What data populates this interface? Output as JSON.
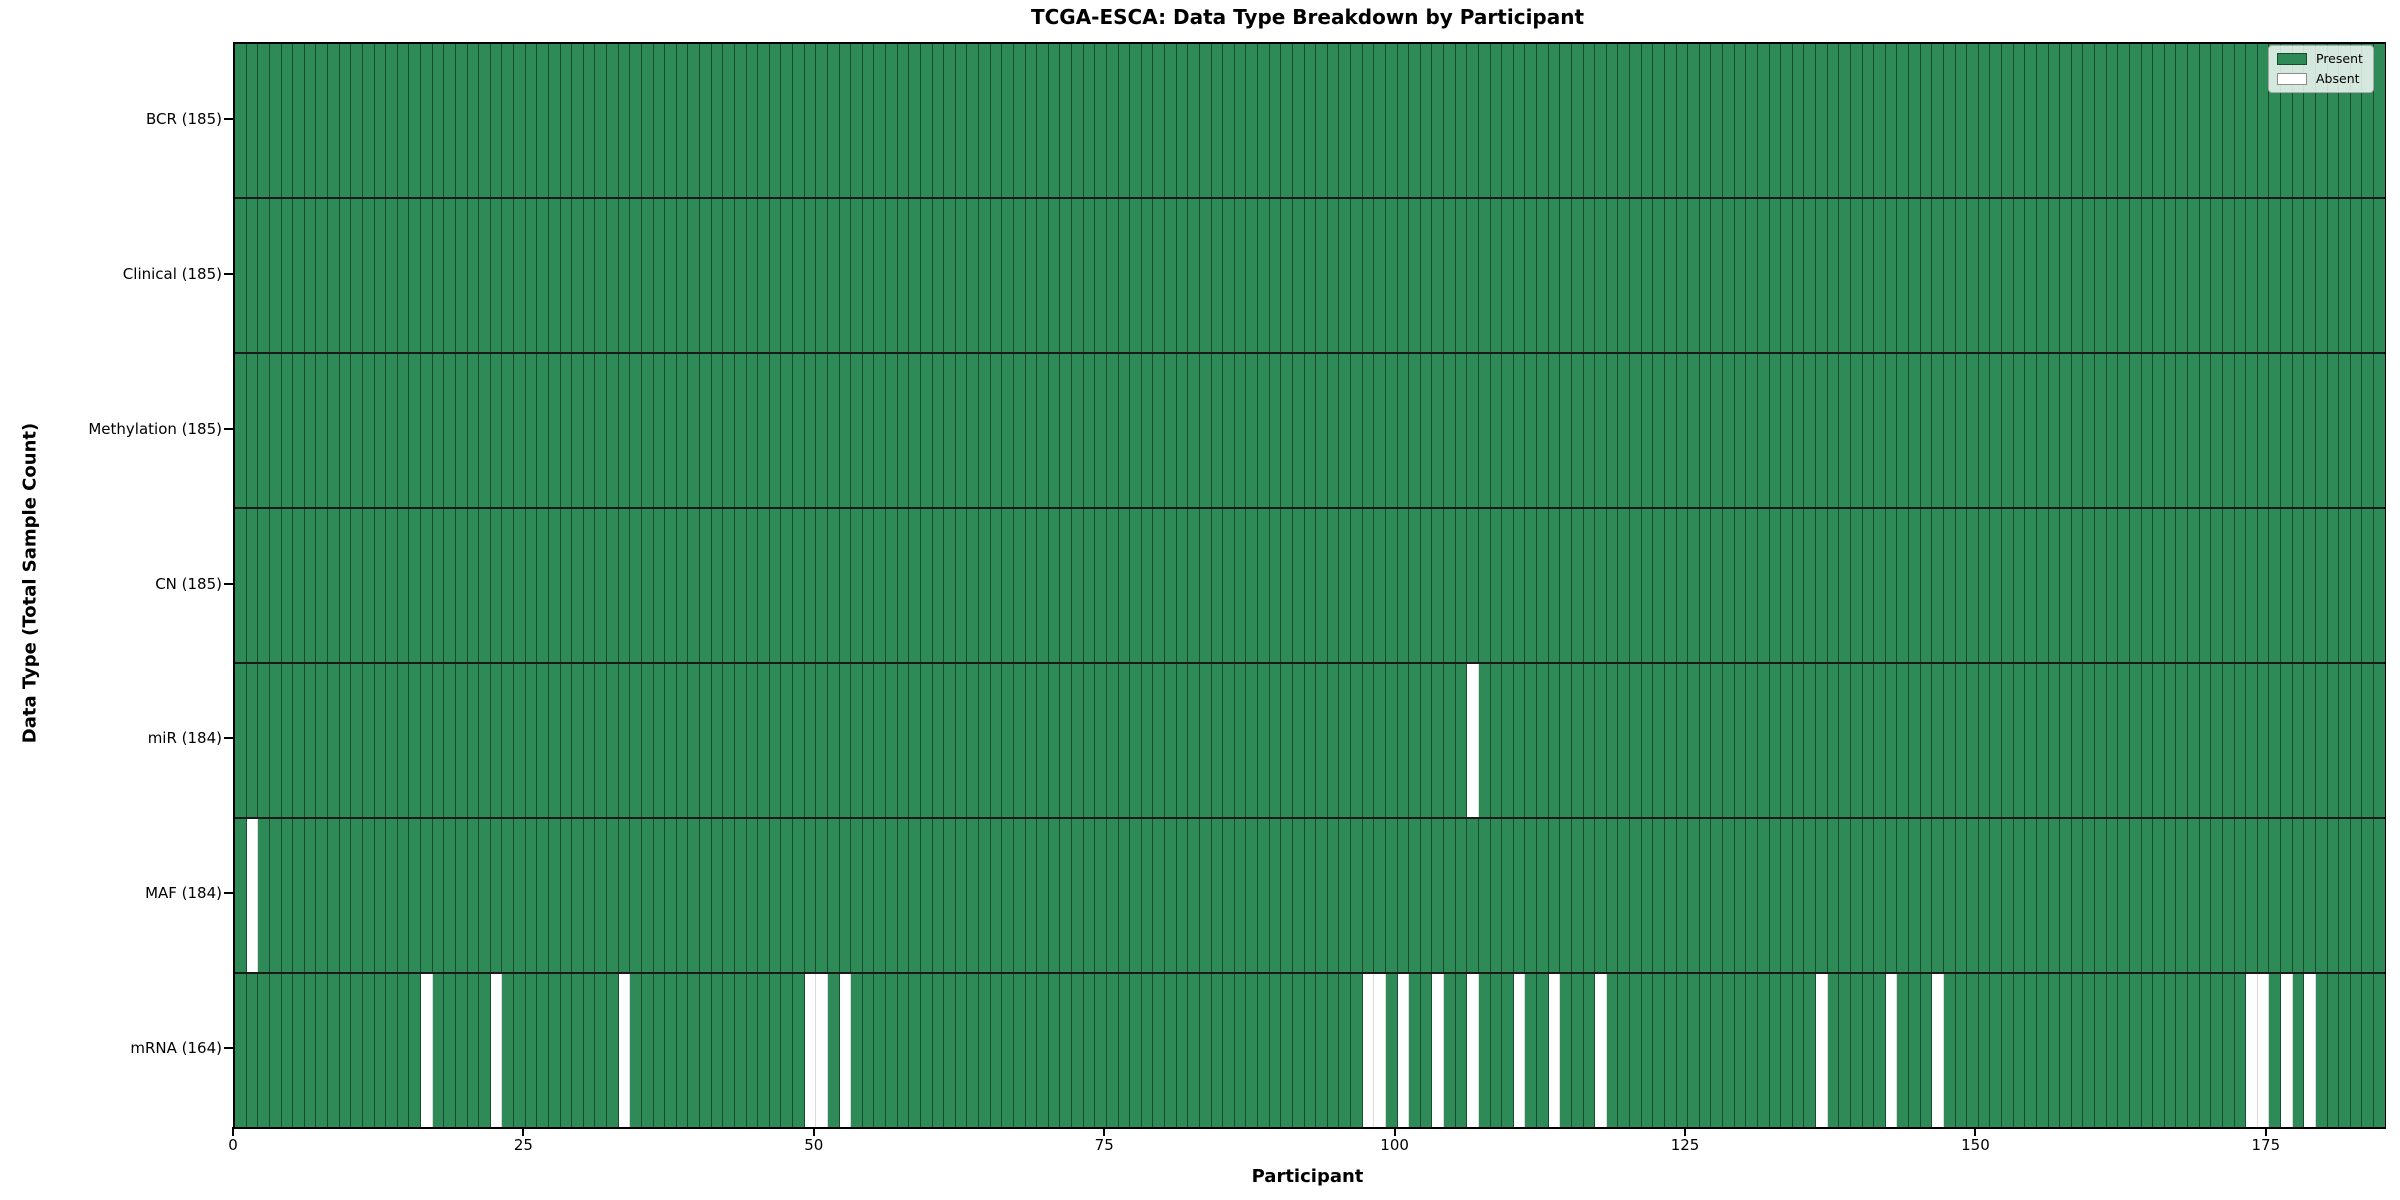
{
  "chart_data": {
    "type": "heatmap",
    "title": "TCGA-ESCA: Data Type Breakdown by Participant",
    "xlabel": "Participant",
    "ylabel": "Data Type (Total Sample Count)",
    "x_ticks": [
      0,
      25,
      50,
      75,
      100,
      125,
      150,
      175
    ],
    "n_participants": 185,
    "x_range": [
      0,
      185
    ],
    "grid": false,
    "legend_position": "upper right",
    "colors": {
      "present": "#2e8b57",
      "absent": "#ffffff"
    },
    "legend": [
      {
        "label": "Present",
        "color": "#2e8b57"
      },
      {
        "label": "Absent",
        "color": "#ffffff"
      }
    ],
    "rows": [
      {
        "label": "BCR (185)",
        "data_type": "BCR",
        "total_count": 185,
        "absent_participants": []
      },
      {
        "label": "Clinical (185)",
        "data_type": "Clinical",
        "total_count": 185,
        "absent_participants": []
      },
      {
        "label": "Methylation (185)",
        "data_type": "Methylation",
        "total_count": 185,
        "absent_participants": []
      },
      {
        "label": "CN (185)",
        "data_type": "CN",
        "total_count": 185,
        "absent_participants": []
      },
      {
        "label": "miR (184)",
        "data_type": "miR",
        "total_count": 184,
        "absent_participants": [
          106
        ]
      },
      {
        "label": "MAF (184)",
        "data_type": "MAF",
        "total_count": 184,
        "absent_participants": [
          1
        ]
      },
      {
        "label": "mRNA (164)",
        "data_type": "mRNA",
        "total_count": 164,
        "absent_participants": [
          16,
          22,
          33,
          49,
          50,
          52,
          97,
          98,
          100,
          103,
          106,
          110,
          113,
          117,
          136,
          142,
          146,
          173,
          174,
          176,
          178
        ]
      }
    ]
  }
}
